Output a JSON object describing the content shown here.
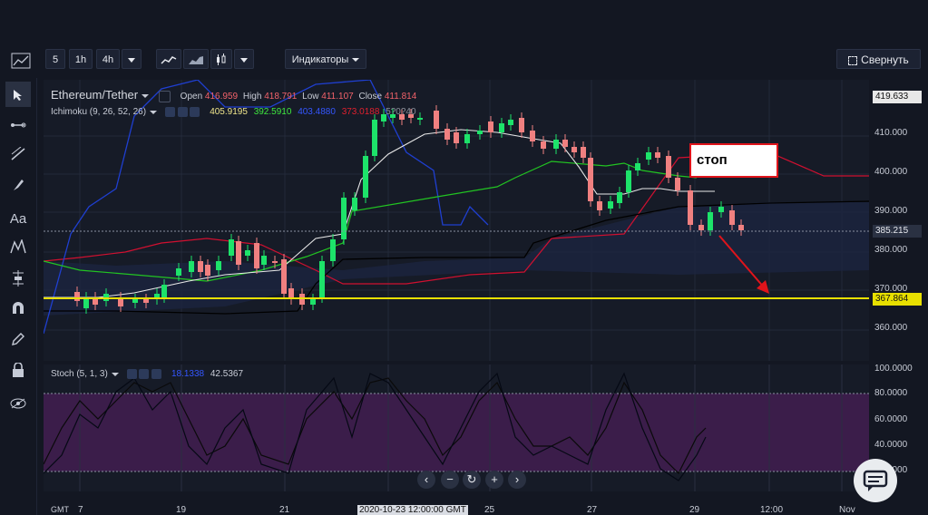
{
  "toolbar": {
    "intervals": [
      "5",
      "1h",
      "4h"
    ],
    "indicators_label": "Индикаторы",
    "collapse_label": "Свернуть"
  },
  "legend": {
    "symbol": "Ethereum/Tether",
    "open_label": "Open",
    "open": "416.959",
    "high_label": "High",
    "high": "418.791",
    "low_label": "Low",
    "low": "411.107",
    "close_label": "Close",
    "close": "411.814",
    "ichimoku": "Ichimoku (9, 26, 52, 26)",
    "ich_v1": "405.9195",
    "ich_v2": "392.5910",
    "ich_v3": "403.4880",
    "ich_v4": "373.0188",
    "ich_v5": "5?0?40",
    "stoch": "Stoch (5, 1, 3)",
    "stoch_v1": "18.1338",
    "stoch_v2": "42.5367"
  },
  "price_axis": {
    "labels": [
      "410.000",
      "400.000",
      "390.000",
      "380.000",
      "370.000",
      "360.000"
    ],
    "current_price": "419.633",
    "last_price": "385.215",
    "level_price": "367.864"
  },
  "osc_axis": {
    "labels": [
      "100.0000",
      "80.0000",
      "60.0000",
      "40.0000",
      "20.0000"
    ]
  },
  "time_axis": {
    "gmt": "GMT",
    "labels": [
      "7",
      "19",
      "21",
      "25",
      "27",
      "29",
      "12:00",
      "Nov"
    ],
    "cursor_time": "2020-10-23 12:00:00 GMT"
  },
  "annotation": {
    "stop_label": "стоп"
  },
  "nav": {
    "zoom_out": "−",
    "reset": "↻",
    "zoom_in": "+",
    "left": "‹",
    "right": "›"
  },
  "colors": {
    "up": "#1de36a",
    "down": "#f08080",
    "level_line": "#e8e000",
    "tenkan": "#e8e8e8",
    "kijun": "#22c422",
    "chikou": "#1f3fd0",
    "senkou_a": "#d01030",
    "senkou_b": "#0a0f1a",
    "stoch_fill": "#3b1d4a",
    "arrow": "#e0141b"
  }
}
